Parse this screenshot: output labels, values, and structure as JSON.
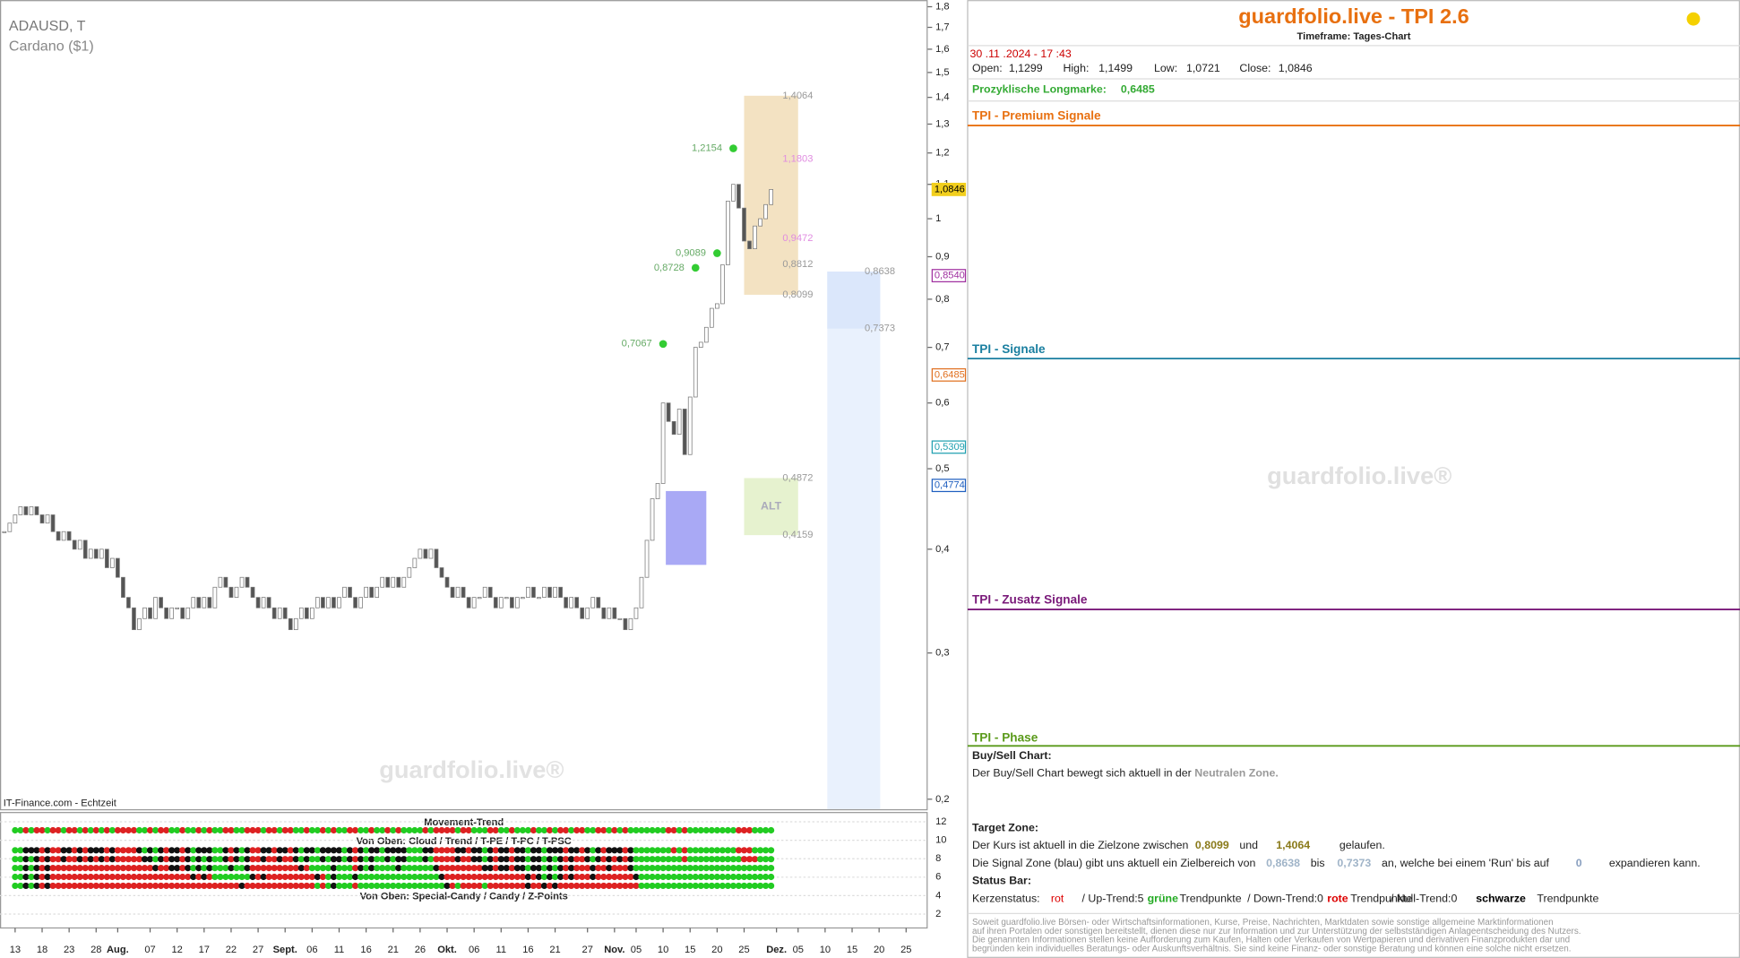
{
  "chart_data": {
    "type": "candlestick",
    "title": "ADAUSD, T",
    "subtitle": "Cardano ($1)",
    "source": "IT-Finance.com - Echtzeit",
    "watermark": "guardfolio.live®",
    "log_scale": true,
    "grid": false,
    "up_color": "#ffffff",
    "down_color": "#555555",
    "x": [
      -2,
      -1,
      0,
      1,
      2,
      3,
      4,
      5,
      6,
      7,
      8,
      9,
      10,
      11,
      12,
      13,
      14,
      15,
      16,
      17,
      18,
      19,
      20,
      21,
      22,
      23,
      24,
      25,
      26,
      27,
      28,
      29,
      30,
      31,
      32,
      33,
      34,
      35,
      36,
      37,
      38,
      39,
      40,
      41,
      42,
      43,
      44,
      45,
      46,
      47,
      48,
      49,
      50,
      51,
      52,
      53,
      54,
      55,
      56,
      57,
      58,
      59,
      60,
      61,
      62,
      63,
      64,
      65,
      66,
      67,
      68,
      69,
      70,
      71,
      72,
      73,
      74,
      75,
      76,
      77,
      78,
      79,
      80,
      81,
      82,
      83,
      84,
      85,
      86,
      87,
      88,
      89,
      90,
      91,
      92,
      93,
      94,
      95,
      96,
      97,
      98,
      99,
      100,
      101,
      102,
      103,
      104,
      105,
      106,
      107,
      108,
      109,
      110,
      111,
      112,
      113,
      114,
      115,
      116,
      117,
      118,
      119,
      120,
      121,
      122,
      123,
      124,
      125,
      126,
      127,
      128,
      129,
      130,
      131,
      132,
      133,
      134,
      135,
      136,
      137,
      138,
      139,
      140
    ],
    "values": [
      0.42,
      0.43,
      0.44,
      0.45,
      0.44,
      0.45,
      0.44,
      0.43,
      0.44,
      0.42,
      0.41,
      0.42,
      0.41,
      0.4,
      0.41,
      0.39,
      0.4,
      0.39,
      0.4,
      0.38,
      0.39,
      0.37,
      0.35,
      0.34,
      0.32,
      0.33,
      0.34,
      0.33,
      0.35,
      0.34,
      0.33,
      0.34,
      0.34,
      0.33,
      0.34,
      0.35,
      0.34,
      0.35,
      0.34,
      0.36,
      0.37,
      0.36,
      0.35,
      0.36,
      0.37,
      0.36,
      0.35,
      0.34,
      0.35,
      0.34,
      0.33,
      0.34,
      0.33,
      0.32,
      0.33,
      0.34,
      0.33,
      0.34,
      0.35,
      0.34,
      0.35,
      0.34,
      0.35,
      0.36,
      0.35,
      0.34,
      0.35,
      0.36,
      0.35,
      0.36,
      0.37,
      0.36,
      0.37,
      0.36,
      0.37,
      0.38,
      0.39,
      0.4,
      0.39,
      0.4,
      0.38,
      0.37,
      0.36,
      0.35,
      0.36,
      0.35,
      0.34,
      0.35,
      0.35,
      0.36,
      0.35,
      0.34,
      0.35,
      0.35,
      0.34,
      0.35,
      0.35,
      0.36,
      0.35,
      0.35,
      0.36,
      0.35,
      0.36,
      0.35,
      0.34,
      0.35,
      0.34,
      0.33,
      0.34,
      0.35,
      0.34,
      0.33,
      0.34,
      0.33,
      0.33,
      0.32,
      0.33,
      0.34,
      0.37,
      0.41,
      0.46,
      0.48,
      0.6,
      0.57,
      0.55,
      0.59,
      0.52,
      0.61,
      0.7,
      0.71,
      0.74,
      0.78,
      0.79,
      0.88,
      1.05,
      1.1,
      1.03,
      0.94,
      0.92,
      0.98,
      1.0,
      1.04,
      1.0846
    ],
    "xlim": [
      -2.8,
      169
    ],
    "ylim": [
      0.2,
      1.8
    ],
    "yticks": [
      {
        "value": 1.8,
        "label": "1,8"
      },
      {
        "value": 1.7,
        "label": "1,7"
      },
      {
        "value": 1.6,
        "label": "1,6"
      },
      {
        "value": 1.5,
        "label": "1,5"
      },
      {
        "value": 1.4,
        "label": "1,4"
      },
      {
        "value": 1.3,
        "label": "1,3"
      },
      {
        "value": 1.2,
        "label": "1,2"
      },
      {
        "value": 1.1,
        "label": "1,1"
      },
      1,
      {
        "value": 0.9,
        "label": "0,9"
      },
      {
        "value": 0.8,
        "label": "0,8"
      },
      {
        "value": 0.7,
        "label": "0,7"
      },
      {
        "value": 0.6,
        "label": "0,6"
      },
      {
        "value": 0.5,
        "label": "0,5"
      },
      {
        "value": 0.4,
        "label": "0,4"
      },
      {
        "value": 0.3,
        "label": "0,3"
      },
      {
        "value": 0.2,
        "label": "0,2"
      }
    ],
    "xticks": [
      {
        "value": 0,
        "label": "13"
      },
      {
        "value": 5,
        "label": "18"
      },
      {
        "value": 10,
        "label": "23"
      },
      {
        "value": 15,
        "label": "28"
      },
      {
        "value": 19,
        "label": "Aug."
      },
      {
        "value": 25,
        "label": "07"
      },
      {
        "value": 30,
        "label": "12"
      },
      {
        "value": 35,
        "label": "17"
      },
      {
        "value": 40,
        "label": "22"
      },
      {
        "value": 45,
        "label": "27"
      },
      {
        "value": 50,
        "label": "Sept."
      },
      {
        "value": 55,
        "label": "06"
      },
      {
        "value": 60,
        "label": "11"
      },
      {
        "value": 65,
        "label": "16"
      },
      {
        "value": 70,
        "label": "21"
      },
      {
        "value": 75,
        "label": "26"
      },
      {
        "value": 80,
        "label": "Okt."
      },
      {
        "value": 85,
        "label": "06"
      },
      {
        "value": 90,
        "label": "11"
      },
      {
        "value": 95,
        "label": "16"
      },
      {
        "value": 100,
        "label": "21"
      },
      {
        "value": 106,
        "label": "27"
      },
      {
        "value": 111,
        "label": "Nov."
      },
      {
        "value": 115,
        "label": "05"
      },
      {
        "value": 120,
        "label": "10"
      },
      {
        "value": 125,
        "label": "15"
      },
      {
        "value": 130,
        "label": "20"
      },
      {
        "value": 135,
        "label": "25"
      },
      {
        "value": 141,
        "label": "Dez."
      },
      {
        "value": 145,
        "label": "05"
      },
      {
        "value": 150,
        "label": "10"
      },
      {
        "value": 155,
        "label": "15"
      },
      {
        "value": 160,
        "label": "20"
      },
      {
        "value": 165,
        "label": "25"
      }
    ],
    "zones": [
      {
        "x": [
          135,
          145
        ],
        "low": 0.8099,
        "high": 1.4064,
        "low_label": "0,8099",
        "high_label": "1,4064",
        "color": "#f3e2c2"
      },
      {
        "x": [
          150.4,
          160.2
        ],
        "low": 0.7373,
        "high": 0.8638,
        "low_label": "0,7373",
        "high_label": "0,8638",
        "color": "#dbe7fb",
        "extends_down": true
      },
      {
        "x": [
          135,
          145
        ],
        "low": 0.4159,
        "high": 0.4872,
        "low_label": "0,4159",
        "high_label": "0,4872",
        "label": "ALT",
        "color": "#e6f2cf"
      },
      {
        "x": [
          120.5,
          128
        ],
        "low": 0.383,
        "high": 0.47,
        "color": "#8c8cf2"
      }
    ],
    "levels": [
      {
        "value": 1.1803,
        "label": "1,1803",
        "color": "#e08ce0"
      },
      {
        "value": 0.9472,
        "label": "0,9472",
        "color": "#e08ce0"
      },
      {
        "value": 0.8812,
        "label": "0,8812",
        "color": "#999999"
      }
    ],
    "signals": [
      {
        "x": 133,
        "value": 1.2154,
        "label": "1,2154"
      },
      {
        "x": 130,
        "value": 0.9089,
        "label": "0,9089"
      },
      {
        "x": 126,
        "value": 0.8728,
        "label": "0,8728"
      },
      {
        "x": 120,
        "value": 0.7067,
        "label": "0,7067"
      }
    ],
    "price_labels": [
      {
        "value": 1.0846,
        "label": "1,0846",
        "color": "#f2cf1d"
      },
      {
        "value": 0.854,
        "label": "0,8540",
        "color": "#a030a0"
      },
      {
        "value": 0.6485,
        "label": "0,6485",
        "color": "#e07020"
      },
      {
        "value": 0.5309,
        "label": "0,5309",
        "color": "#20a0b0"
      },
      {
        "value": 0.4774,
        "label": "0,4774",
        "color": "#2060c0"
      }
    ],
    "indicator": {
      "titles": [
        "Movement-Trend",
        "Von Oben: Cloud / Trend / T-PE / T-PC / T-PSC",
        "Von Oben: Special-Candy / Candy / Z-Points"
      ],
      "ylim": [
        0.5,
        13
      ],
      "yticks": [
        12,
        10,
        8,
        6,
        4,
        2
      ]
    }
  },
  "panel": {
    "title": "guardfolio.live - TPI 2.6",
    "timeframe": "Timeframe: Tages-Chart",
    "datetime": "30 .11 .2024  - 17 :43",
    "ohlc": [
      "Open:",
      "1,1299",
      "High:",
      "1,1499",
      "Low:",
      "1,0721",
      "Close:",
      "1,0846"
    ],
    "longmarke": [
      "Prozyklische Longmarke:",
      "0,6485"
    ],
    "sections": [
      "TPI - Premium Signale",
      "TPI - Signale",
      "TPI - Zusatz Signale",
      "TPI - Phase"
    ],
    "watermark": "guardfolio.live®",
    "buy_sell": [
      "Buy/Sell Chart:",
      "Der Buy/Sell Chart bewegt sich aktuell in der",
      "Neutralen Zone."
    ],
    "target_heading": "Target Zone:",
    "target_line1": [
      "Der Kurs ist aktuell in die Zielzone zwischen",
      "0,8099",
      "und",
      "1,4064",
      "gelaufen."
    ],
    "target_line2": [
      "Die Signal Zone (blau) gibt uns aktuell ein Zielbereich von",
      "0,8638",
      "bis",
      "0,7373",
      "an, welche bei einem 'Run' bis auf",
      "0",
      "expandieren kann."
    ],
    "status_heading": "Status Bar:",
    "status_line": [
      "Kerzenstatus:",
      "rot",
      "/ Up-Trend:5",
      "grüne",
      "Trendpunkte",
      "/ Down-Trend:0",
      "rote",
      "Trendpunkte",
      "/ Null-Trend:0",
      "schwarze",
      "Trendpunkte"
    ],
    "disclaimer": [
      "Soweit guardfolio.live Börsen- oder Wirtschaftsinformationen, Kurse, Preise, Nachrichten, Marktdaten sowie sonstige allgemeine Marktinformationen",
      "auf ihren Portalen oder sonstigen bereitstellt, dienen diese nur zur Information und zur Unterstützung der selbstständigen Anlageentscheidung des Nutzers.",
      "Die genannten Informationen stellen keine Aufforderung zum Kaufen, Halten oder Verkaufen von Wertpapieren und derivativen Finanzprodukten dar und",
      "begründen kein individuelles Beratungs- oder Auskunftsverhältnis. Sie sind keine Finanz- oder sonstige Beratung und können eine solche nicht ersetzen."
    ]
  }
}
